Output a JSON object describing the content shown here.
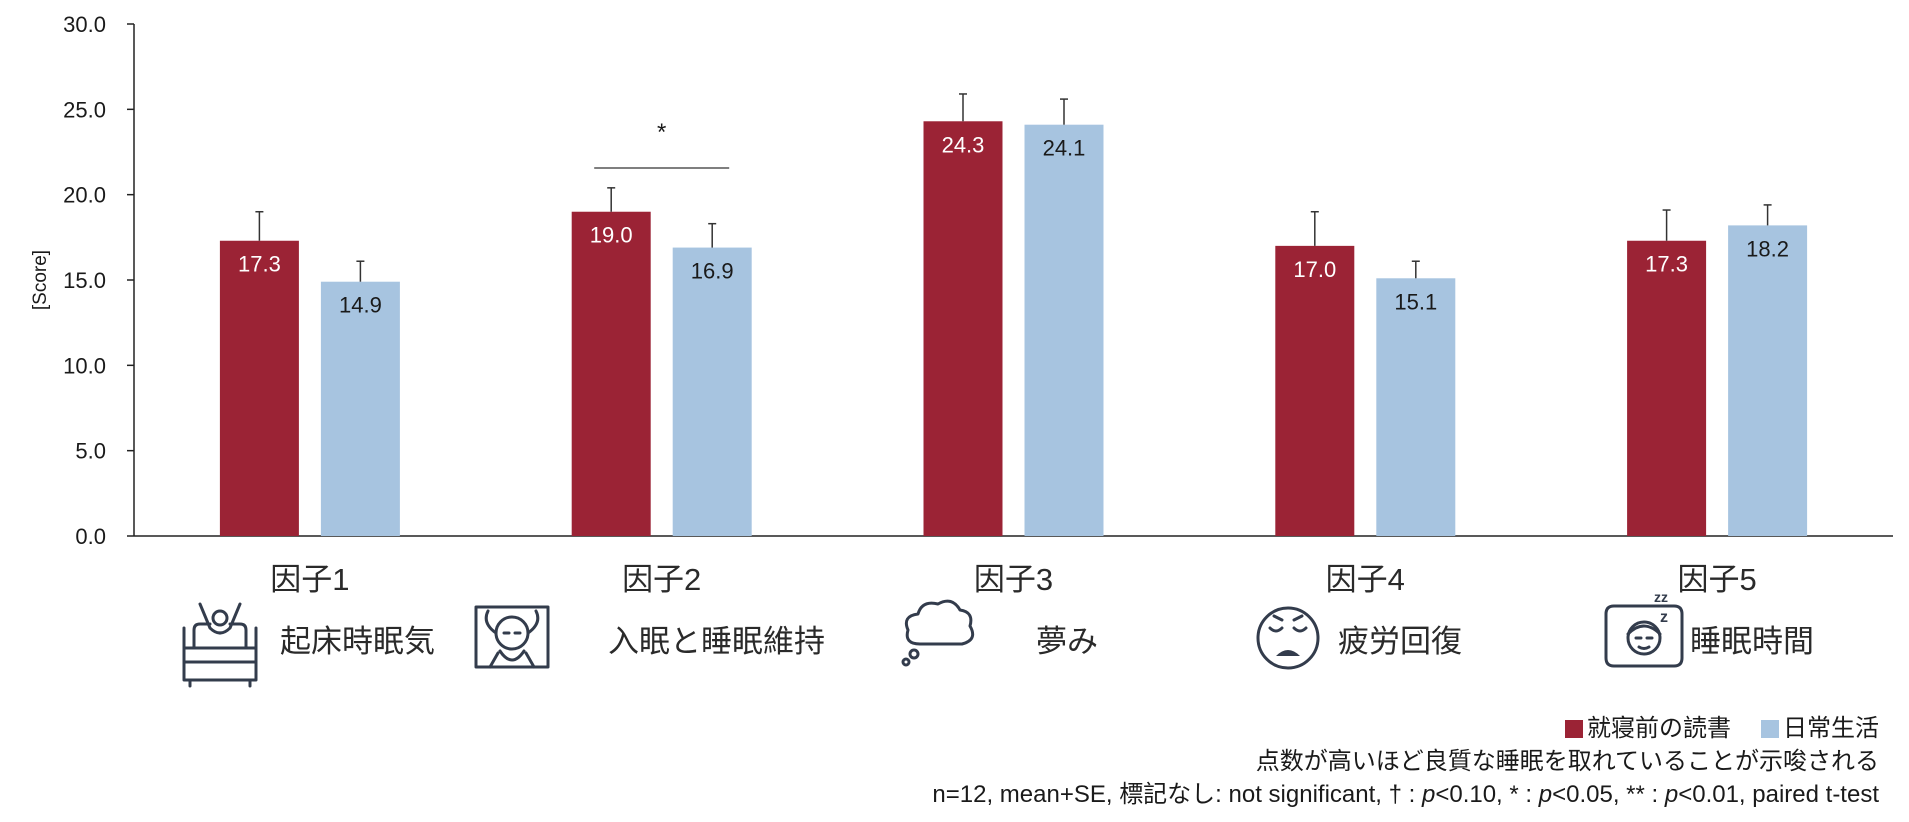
{
  "chart_data": {
    "type": "bar",
    "ylabel": "[Score]",
    "ylim": [
      0,
      30
    ],
    "ytick_step": 5,
    "ytick_labels": [
      "0.0",
      "5.0",
      "10.0",
      "15.0",
      "20.0",
      "25.0",
      "30.0"
    ],
    "categories": [
      "因子1",
      "因子2",
      "因子3",
      "因子4",
      "因子5"
    ],
    "factor_names": [
      "起床時眠気",
      "入眠と睡眠維持",
      "夢み",
      "疲労回復",
      "睡眠時間"
    ],
    "factor_icons": [
      "waking-in-bed-icon",
      "sleeping-head-icon",
      "dream-cloud-icon",
      "tired-face-icon",
      "sleeping-zzz-icon"
    ],
    "series": [
      {
        "name": "就寝前の読書",
        "color": "#9b2335",
        "values": [
          17.3,
          19.0,
          24.3,
          17.0,
          17.3
        ],
        "value_labels": [
          "17.3",
          "19.0",
          "24.3",
          "17.0",
          "17.3"
        ],
        "errors": [
          1.7,
          1.4,
          1.6,
          2.0,
          1.8
        ]
      },
      {
        "name": "日常生活",
        "color": "#a7c4e0",
        "values": [
          14.9,
          16.9,
          24.1,
          15.1,
          18.2
        ],
        "value_labels": [
          "14.9",
          "16.9",
          "24.1",
          "15.1",
          "18.2"
        ],
        "errors": [
          1.2,
          1.4,
          1.5,
          1.0,
          1.2
        ]
      }
    ],
    "significance": [
      {
        "category": "因子2",
        "label": "*"
      }
    ],
    "legend_position": "bottom-right",
    "grid": false
  },
  "notes": {
    "line1": "点数が高いほど良質な睡眠を取れていることが示唆される",
    "line2_parts": [
      "n=12, mean+SE, 標記なし: not significant, † : ",
      "p",
      "<0.10, * : ",
      "p",
      "<0.05, ** : ",
      "p",
      "<0.01, paired t-test"
    ]
  }
}
